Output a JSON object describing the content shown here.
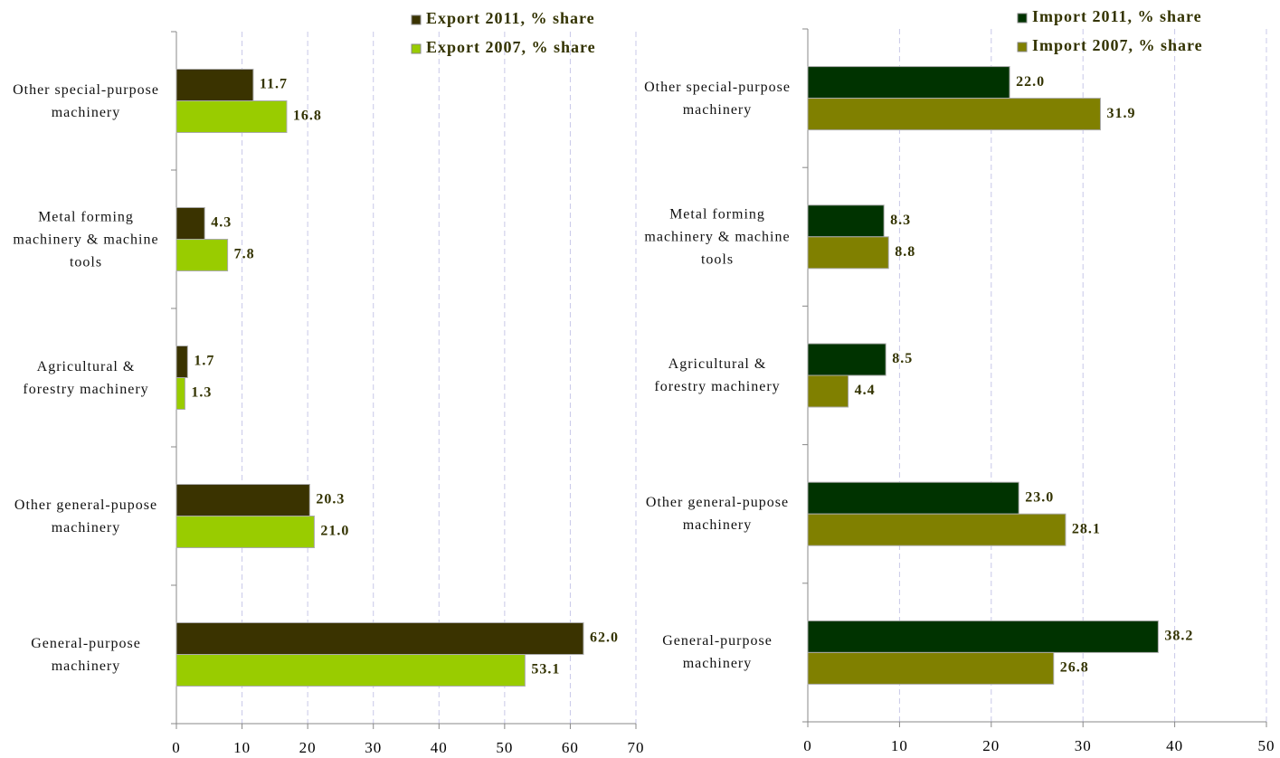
{
  "chart_data": [
    {
      "type": "hbar",
      "categories": [
        "Other special-purpose machinery",
        "Metal forming machinery & machine tools",
        "Agricultural & forestry machinery",
        "Other general-pupose machinery",
        "General-purpose machinery"
      ],
      "series": [
        {
          "name": "Export 2011, % share",
          "color": "#3a3300",
          "values": [
            11.7,
            4.3,
            1.7,
            20.3,
            62.0
          ],
          "value_labels": [
            "11.7",
            "4.3",
            "1.7",
            "20.3",
            "62.0"
          ]
        },
        {
          "name": "Export 2007, % share",
          "color": "#99cc00",
          "values": [
            16.8,
            7.8,
            1.3,
            21.0,
            53.1
          ],
          "value_labels": [
            "16.8",
            "7.8",
            "1.3",
            "21.0",
            "53.1"
          ]
        }
      ],
      "xlim": [
        0,
        70
      ],
      "xticks": [
        0,
        10,
        20,
        30,
        40,
        50,
        60,
        70
      ],
      "grid": true,
      "legend": "top"
    },
    {
      "type": "hbar",
      "categories": [
        "Other special-purpose machinery",
        "Metal forming machinery & machine tools",
        "Agricultural & forestry machinery",
        "Other general-pupose machinery",
        "General-purpose machinery"
      ],
      "series": [
        {
          "name": "Import 2011, % share",
          "color": "#003300",
          "values": [
            22.0,
            8.3,
            8.5,
            23.0,
            38.2
          ],
          "value_labels": [
            "22.0",
            "8.3",
            "8.5",
            "23.0",
            "38.2"
          ]
        },
        {
          "name": "Import 2007, % share",
          "color": "#808000",
          "values": [
            31.9,
            8.8,
            4.4,
            28.1,
            26.8
          ],
          "value_labels": [
            "31.9",
            "8.8",
            "4.4",
            "28.1",
            "26.8"
          ]
        }
      ],
      "xlim": [
        0,
        50
      ],
      "xticks": [
        0,
        10,
        20,
        30,
        40,
        50
      ],
      "grid": true,
      "legend": "top"
    }
  ]
}
